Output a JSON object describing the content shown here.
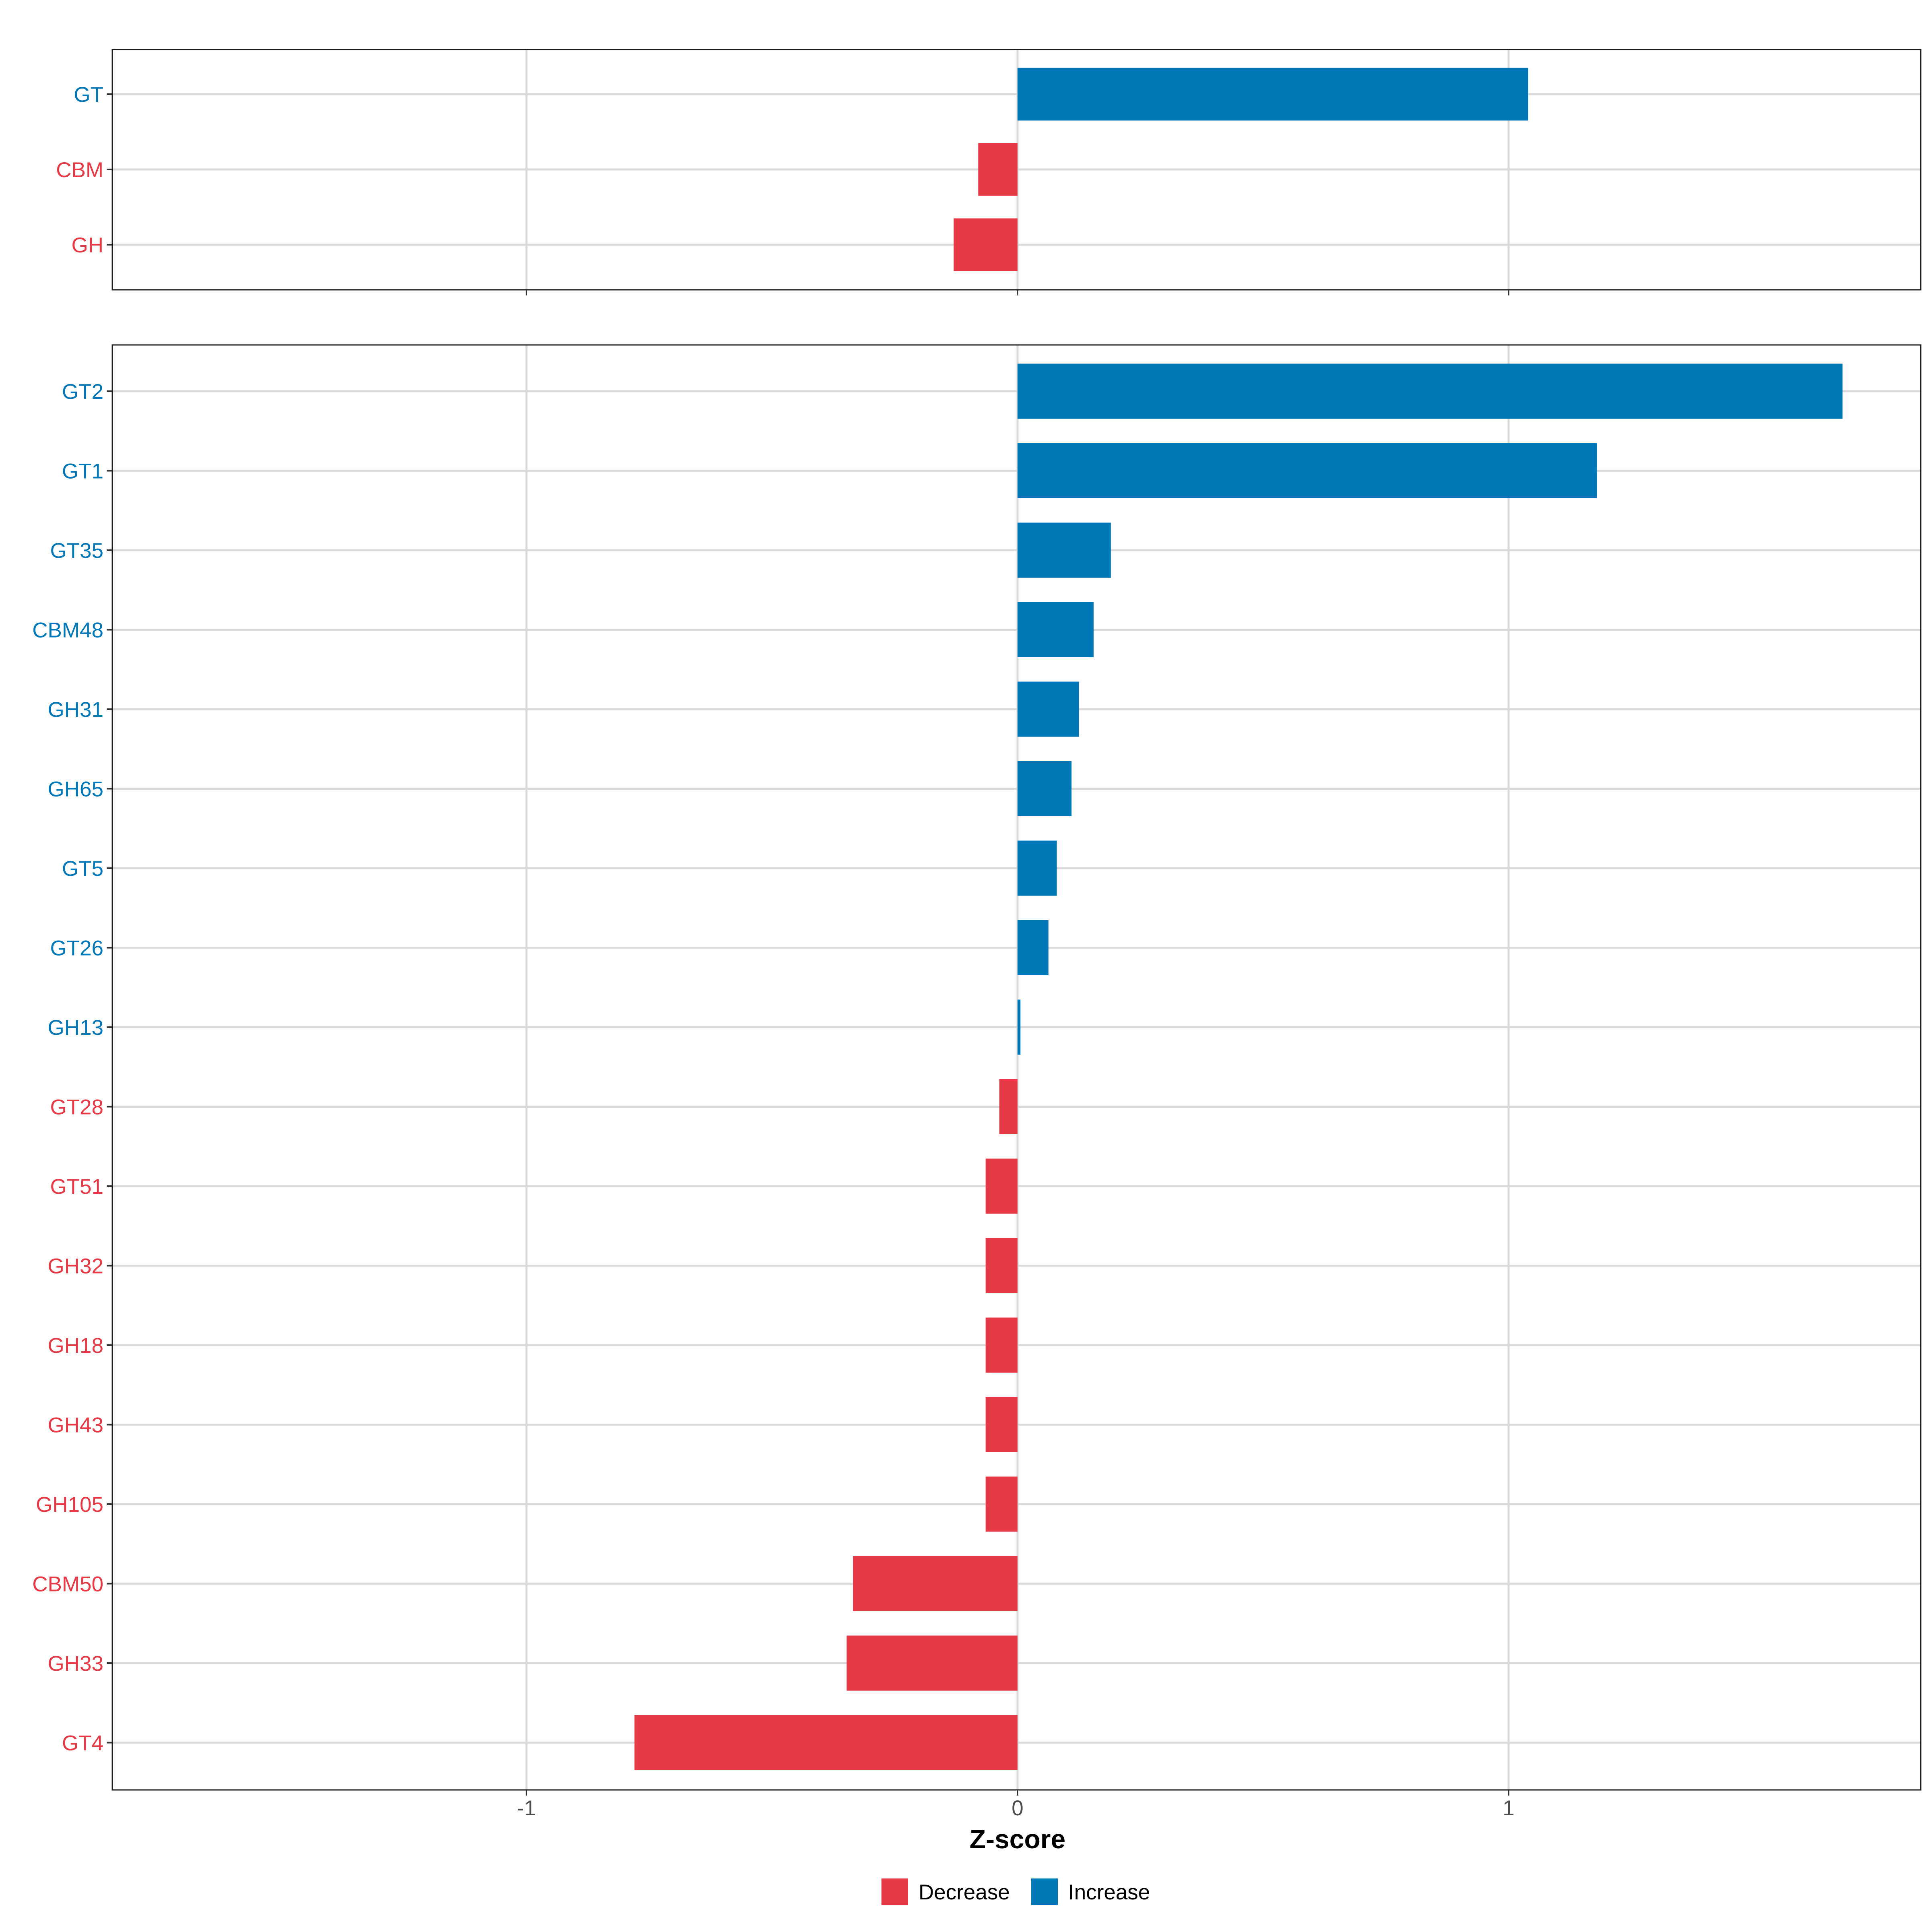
{
  "chart_data": {
    "type": "bar",
    "orientation": "horizontal",
    "xlabel": "Z-score",
    "xlim": [
      -1.85,
      1.85
    ],
    "x_ticks": [
      {
        "value": -1,
        "label": "-1"
      },
      {
        "value": 0,
        "label": "0"
      },
      {
        "value": 1,
        "label": "1"
      }
    ],
    "colors": {
      "Decrease": "#e63946",
      "Increase": "#0077b6"
    },
    "legend": {
      "position": "bottom",
      "entries": [
        {
          "key": "Decrease",
          "label": "Decrease"
        },
        {
          "key": "Increase",
          "label": "Increase"
        }
      ]
    },
    "panels": [
      {
        "name": "class-panel",
        "categories": [
          "GT",
          "CBM",
          "GH"
        ],
        "values": [
          1.04,
          -0.08,
          -0.13
        ],
        "directions": [
          "Increase",
          "Decrease",
          "Decrease"
        ]
      },
      {
        "name": "family-panel",
        "categories": [
          "GT2",
          "GT1",
          "GT35",
          "CBM48",
          "GH31",
          "GH65",
          "GT5",
          "GT26",
          "GH13",
          "GT28",
          "GT51",
          "GH32",
          "GH18",
          "GH43",
          "GH105",
          "CBM50",
          "GH33",
          "GT4"
        ],
        "values": [
          1.68,
          1.18,
          0.19,
          0.155,
          0.125,
          0.11,
          0.08,
          0.063,
          0.006,
          -0.037,
          -0.065,
          -0.065,
          -0.065,
          -0.065,
          -0.065,
          -0.335,
          -0.348,
          -0.78
        ],
        "directions": [
          "Increase",
          "Increase",
          "Increase",
          "Increase",
          "Increase",
          "Increase",
          "Increase",
          "Increase",
          "Increase",
          "Decrease",
          "Decrease",
          "Decrease",
          "Decrease",
          "Decrease",
          "Decrease",
          "Decrease",
          "Decrease",
          "Decrease"
        ]
      }
    ]
  }
}
